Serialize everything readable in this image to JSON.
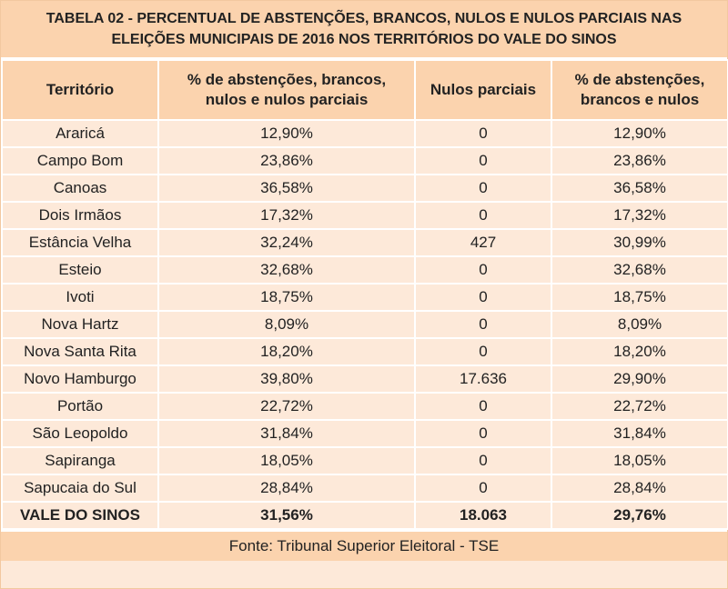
{
  "title_line1": "TABELA 02 - PERCENTUAL DE ABSTENÇÕES, BRANCOS, NULOS E NULOS PARCIAIS NAS",
  "title_line2": "ELEIÇÕES MUNICIPAIS DE 2016 NOS TERRITÓRIOS DO VALE DO SINOS",
  "headers": {
    "territorio": "Território",
    "pct_parciais_line1": "% de abstenções, brancos,",
    "pct_parciais_line2": "nulos e nulos parciais",
    "nulos_parciais": "Nulos parciais",
    "pct_nulos_line1": "% de abstenções,",
    "pct_nulos_line2": "brancos e nulos"
  },
  "rows": [
    {
      "territorio": "Araricá",
      "pct_parciais": "12,90%",
      "nulos_parciais": "0",
      "pct_nulos": "12,90%"
    },
    {
      "territorio": "Campo Bom",
      "pct_parciais": "23,86%",
      "nulos_parciais": "0",
      "pct_nulos": "23,86%"
    },
    {
      "territorio": "Canoas",
      "pct_parciais": "36,58%",
      "nulos_parciais": "0",
      "pct_nulos": "36,58%"
    },
    {
      "territorio": "Dois Irmãos",
      "pct_parciais": "17,32%",
      "nulos_parciais": "0",
      "pct_nulos": "17,32%"
    },
    {
      "territorio": "Estância Velha",
      "pct_parciais": "32,24%",
      "nulos_parciais": "427",
      "pct_nulos": "30,99%"
    },
    {
      "territorio": "Esteio",
      "pct_parciais": "32,68%",
      "nulos_parciais": "0",
      "pct_nulos": "32,68%"
    },
    {
      "territorio": "Ivoti",
      "pct_parciais": "18,75%",
      "nulos_parciais": "0",
      "pct_nulos": "18,75%"
    },
    {
      "territorio": "Nova Hartz",
      "pct_parciais": "8,09%",
      "nulos_parciais": "0",
      "pct_nulos": "8,09%"
    },
    {
      "territorio": "Nova Santa Rita",
      "pct_parciais": "18,20%",
      "nulos_parciais": "0",
      "pct_nulos": "18,20%"
    },
    {
      "territorio": "Novo Hamburgo",
      "pct_parciais": "39,80%",
      "nulos_parciais": "17.636",
      "pct_nulos": "29,90%"
    },
    {
      "territorio": "Portão",
      "pct_parciais": "22,72%",
      "nulos_parciais": "0",
      "pct_nulos": "22,72%"
    },
    {
      "territorio": "São Leopoldo",
      "pct_parciais": "31,84%",
      "nulos_parciais": "0",
      "pct_nulos": "31,84%"
    },
    {
      "territorio": "Sapiranga",
      "pct_parciais": "18,05%",
      "nulos_parciais": "0",
      "pct_nulos": "18,05%"
    },
    {
      "territorio": "Sapucaia do Sul",
      "pct_parciais": "28,84%",
      "nulos_parciais": "0",
      "pct_nulos": "28,84%"
    }
  ],
  "total": {
    "territorio": "VALE DO SINOS",
    "pct_parciais": "31,56%",
    "nulos_parciais": "18.063",
    "pct_nulos": "29,76%"
  },
  "source": "Fonte: Tribunal Superior Eleitoral - TSE",
  "colors": {
    "header_bg": "#fbd3ae",
    "cell_bg": "#fde9d9",
    "grid": "#ffffff"
  }
}
